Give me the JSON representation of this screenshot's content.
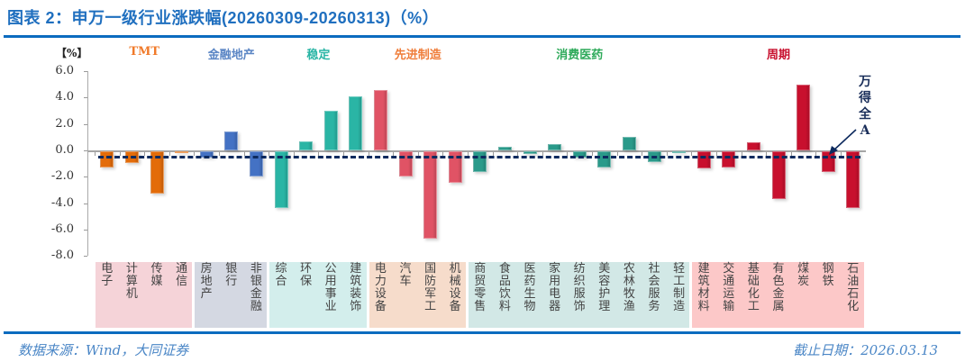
{
  "title": "图表 2：申万一级行业涨跌幅(20260309-20260313)（%）",
  "footer": {
    "source": "数据来源：Wind，大同证券",
    "date": "截止日期：2026.03.13"
  },
  "chart_data": {
    "type": "bar",
    "title": "申万一级行业涨跌幅(20260309-20260313)（%）",
    "ylabel": "【%】",
    "ylim": [
      -8.0,
      6.0
    ],
    "yticks": [
      "6.0",
      "4.0",
      "2.0",
      "0.0",
      "-2.0",
      "-4.0",
      "-6.0",
      "-8.0"
    ],
    "reference_line": {
      "name": "万得全A",
      "value": -0.5,
      "style": "dashed",
      "color": "#0d2a5e"
    },
    "groups": [
      {
        "name": "TMT",
        "color": "#e36c0a",
        "label_color": "#f07a2a",
        "bg": "#f5d3d8",
        "categories": [
          "电子",
          "计算机",
          "传媒",
          "通信"
        ],
        "values": [
          -1.2,
          -0.9,
          -3.2,
          -0.1
        ]
      },
      {
        "name": "金融地产",
        "color": "#4472c4",
        "label_color": "#5b86c5",
        "bg": "#d4d8e2",
        "categories": [
          "房地产",
          "银行",
          "非银金融"
        ],
        "values": [
          -0.5,
          1.4,
          -1.9
        ]
      },
      {
        "name": "稳定",
        "color": "#2ab5a5",
        "label_color": "#2ab5a5",
        "bg": "#d3eeec",
        "categories": [
          "综合",
          "环保",
          "公用事业",
          "建筑装饰"
        ],
        "values": [
          -4.3,
          0.7,
          3.0,
          4.1
        ]
      },
      {
        "name": "先进制造",
        "color": "#e05365",
        "label_color": "#ef7d3a",
        "bg": "#f6dccb",
        "categories": [
          "电力设备",
          "汽车",
          "国防军工",
          "机械设备"
        ],
        "values": [
          4.6,
          -1.9,
          -6.6,
          -2.4
        ]
      },
      {
        "name": "消费医药",
        "color": "#2a9a8a",
        "label_color": "#2eaa5a",
        "bg": "#d2e8e6",
        "categories": [
          "商贸零售",
          "食品饮料",
          "医药生物",
          "家用电器",
          "纺织服饰",
          "美容护理",
          "农林牧渔",
          "社会服务",
          "轻工制造"
        ],
        "values": [
          -1.6,
          0.3,
          -0.2,
          0.5,
          -0.5,
          -1.2,
          1.0,
          -0.8,
          -0.1
        ]
      },
      {
        "name": "周期",
        "color": "#c8102e",
        "label_color": "#c8102e",
        "bg": "#fcc8c8",
        "categories": [
          "建筑材料",
          "交通运输",
          "基础化工",
          "有色金属",
          "煤炭",
          "钢铁",
          "石油石化"
        ],
        "values": [
          -1.3,
          -1.2,
          0.6,
          -3.6,
          5.0,
          -1.6,
          -4.3
        ]
      }
    ],
    "legend": [
      "万得全A"
    ],
    "grid": false
  }
}
